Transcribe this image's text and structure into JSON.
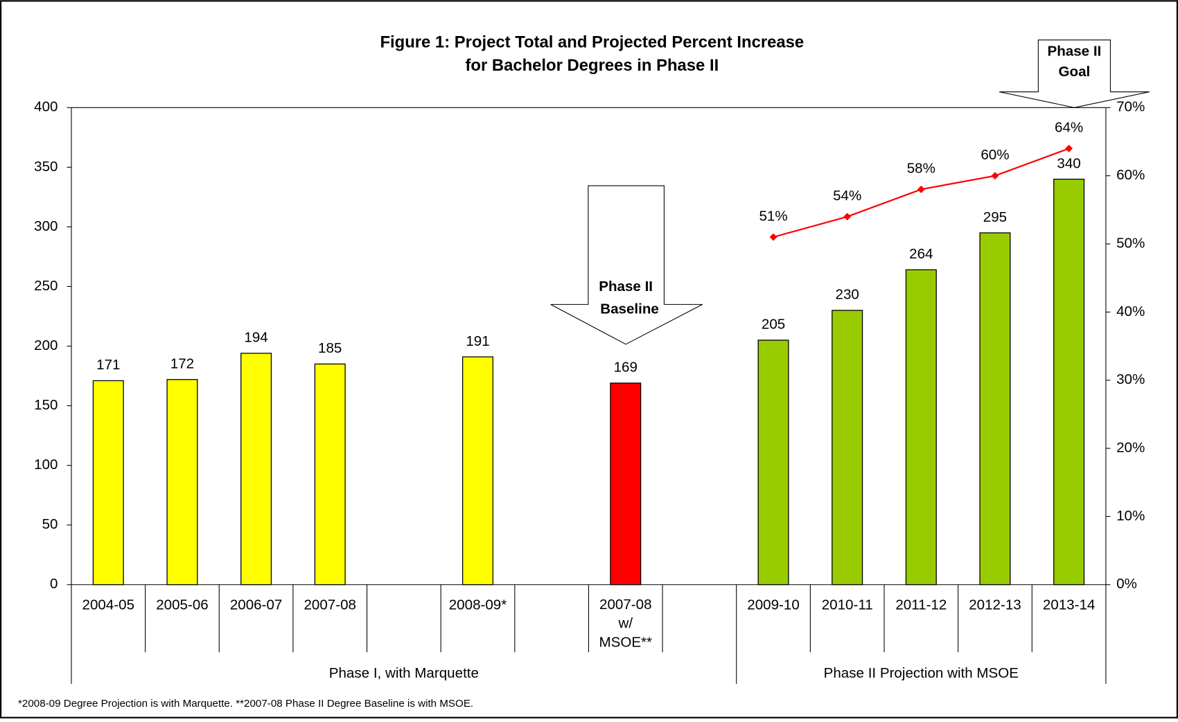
{
  "chart_data": {
    "type": "bar",
    "title": [
      "Figure 1: Project Total and Projected Percent Increase",
      "for Bachelor Degrees in Phase II"
    ],
    "categories": [
      "2004-05",
      "2005-06",
      "2006-07",
      "2007-08",
      null,
      "2008-09*",
      null,
      "2007-08 w/ MSOE**",
      null,
      "2009-10",
      "2010-11",
      "2011-12",
      "2012-13",
      "2013-14"
    ],
    "values": [
      171,
      172,
      194,
      185,
      null,
      191,
      null,
      169,
      null,
      205,
      230,
      264,
      295,
      340
    ],
    "colors": [
      "#ffff00",
      "#ffff00",
      "#ffff00",
      "#ffff00",
      null,
      "#ffff00",
      null,
      "#ff0000",
      null,
      "#99cc00",
      "#99cc00",
      "#99cc00",
      "#99cc00",
      "#99cc00"
    ],
    "line": {
      "type": "line",
      "axis": "y2",
      "color": "#ff0000",
      "values": [
        null,
        null,
        null,
        null,
        null,
        null,
        null,
        null,
        null,
        51,
        54,
        58,
        60,
        64
      ],
      "value_labels": [
        null,
        null,
        null,
        null,
        null,
        null,
        null,
        null,
        null,
        "51%",
        "54%",
        "58%",
        "60%",
        "64%"
      ]
    },
    "group_labels": [
      "Phase I, with Marquette",
      "Phase II Projection with MSOE"
    ],
    "annotations": [
      [
        "Phase II",
        "Baseline"
      ],
      [
        "Phase II",
        "Goal"
      ]
    ],
    "footnote": "*2008-09 Degree Projection is with Marquette.  **2007-08 Phase II Degree Baseline is with MSOE.",
    "ylim": [
      0,
      400
    ],
    "yticks": [
      0,
      50,
      100,
      150,
      200,
      250,
      300,
      350,
      400
    ],
    "y2lim": [
      0,
      70
    ],
    "y2ticks": [
      {
        "value": 0,
        "label": "0%"
      },
      {
        "value": 10,
        "label": "10%"
      },
      {
        "value": 20,
        "label": "20%"
      },
      {
        "value": 30,
        "label": "30%"
      },
      {
        "value": 40,
        "label": "40%"
      },
      {
        "value": 50,
        "label": "50%"
      },
      {
        "value": 60,
        "label": "60%"
      },
      {
        "value": 70,
        "label": "70%"
      }
    ]
  }
}
